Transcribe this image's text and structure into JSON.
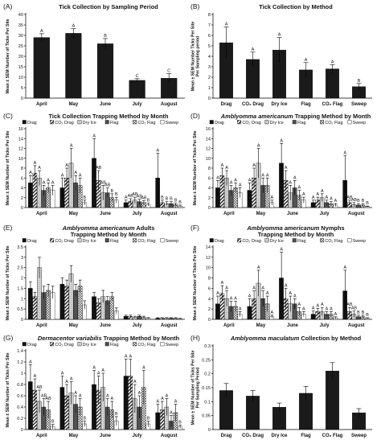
{
  "figure": {
    "patterns": {
      "Drag": "solid-black",
      "CO2 Drag": "diagonal-hatch",
      "Dry Ice": "light-grey-dotted",
      "Flag": "dense-dark-dots",
      "CO2 Flag": "checker",
      "Sweep": "white"
    },
    "colors": {
      "bar": "#1a1a1a",
      "axis": "#000000",
      "background": "#ffffff"
    }
  },
  "chart_data": [
    {
      "id": "A",
      "panel_label": "(A)",
      "type": "bar",
      "title": "Tick Collection by Sampling Period",
      "title_style": "plain",
      "ylabel": [
        "Mean ± SEM Number of Ticks Per Site"
      ],
      "ylim": [
        0,
        40
      ],
      "yticks": [
        0,
        5,
        10,
        15,
        20,
        25,
        30,
        35,
        40
      ],
      "categories": [
        "April",
        "May",
        "June",
        "July",
        "August"
      ],
      "series": [
        {
          "values": [
            29,
            31,
            26,
            8.5,
            9.5
          ],
          "errors": [
            1.8,
            2.2,
            2.5,
            0.8,
            2.2
          ],
          "letters": [
            "A",
            "A",
            "B",
            "C",
            "C"
          ]
        }
      ]
    },
    {
      "id": "B",
      "panel_label": "(B)",
      "type": "bar",
      "title": "Tick Collection by Method",
      "title_style": "plain",
      "ylabel": [
        "Mean ± SEM Number Ticks Per Site",
        "Per Sampling period"
      ],
      "ylim": [
        0,
        8
      ],
      "yticks": [
        0,
        1,
        2,
        3,
        4,
        5,
        6,
        7,
        8
      ],
      "categories": [
        "Drag",
        "CO₂ Drag",
        "Dry Ice",
        "Flag",
        "CO₂ Flag",
        "Sweep"
      ],
      "series": [
        {
          "values": [
            5.3,
            3.7,
            4.6,
            2.7,
            2.8,
            1.1
          ],
          "errors": [
            1.5,
            0.7,
            1.2,
            0.7,
            0.4,
            0.3
          ],
          "letters": [
            "A",
            "A",
            "A",
            "A",
            "A",
            "B"
          ]
        }
      ]
    },
    {
      "id": "C",
      "panel_label": "(C)",
      "type": "bar",
      "title": "Tick Collection Trapping Method by Month",
      "title_style": "plain",
      "ylabel": [
        "Mean ± SEM Number of Ticks Per Site"
      ],
      "ylim": [
        0,
        16
      ],
      "yticks": [
        0,
        2,
        4,
        6,
        8,
        10,
        12,
        14,
        16
      ],
      "categories": [
        "April",
        "May",
        "June",
        "July",
        "August"
      ],
      "legend": [
        "Drag",
        "CO₂ Drag",
        "Dry Ice",
        "Flag",
        "CO₂ Flag",
        "Sweep"
      ],
      "series": [
        {
          "name": "Drag",
          "values": [
            5,
            4,
            10,
            1,
            6
          ],
          "errors": [
            1.5,
            2,
            4,
            0.5,
            5
          ],
          "letters": [
            "A",
            "A",
            "A",
            "A",
            "A"
          ]
        },
        {
          "name": "CO₂ Drag",
          "values": [
            7,
            6,
            5.5,
            1.3,
            1
          ],
          "errors": [
            1.5,
            2,
            2,
            0.5,
            0.5
          ],
          "letters": [
            "A",
            "A",
            "AB",
            "AB",
            "B"
          ]
        },
        {
          "name": "Dry Ice",
          "values": [
            6,
            9,
            3,
            1.5,
            0.8
          ],
          "errors": [
            1.5,
            3,
            1.5,
            0.6,
            0.4
          ],
          "letters": [
            "A",
            "A",
            "AB",
            "AB",
            "B"
          ]
        },
        {
          "name": "Flag",
          "values": [
            3.5,
            5,
            3,
            1.2,
            0.8
          ],
          "errors": [
            1,
            1.5,
            1,
            0.5,
            0.4
          ],
          "letters": [
            "A",
            "A",
            "AB",
            "AB",
            "B"
          ]
        },
        {
          "name": "CO₂ Flag",
          "values": [
            4,
            4.5,
            2,
            1,
            0.6
          ],
          "errors": [
            1,
            1.5,
            0.8,
            0.4,
            0.3
          ],
          "letters": [
            "A",
            "A",
            "B",
            "AB",
            "B"
          ]
        },
        {
          "name": "Sweep",
          "values": [
            3.5,
            1,
            1.5,
            0.6,
            0.3
          ],
          "errors": [
            1,
            0.5,
            0.6,
            0.3,
            0.2
          ],
          "letters": [
            "A",
            "B",
            "B",
            "B",
            "B"
          ]
        }
      ]
    },
    {
      "id": "D",
      "panel_label": "(D)",
      "type": "bar",
      "title": "Amblyomma americanum Trapping Method by Month",
      "title_style": "mixed",
      "title_italic": "Amblyomma americanum",
      "title_rest": " Trapping Method by Month",
      "ylabel": [
        "Mean ± SEM Number of Ticks Per Site"
      ],
      "ylim": [
        0,
        16
      ],
      "yticks": [
        0,
        2,
        4,
        6,
        8,
        10,
        12,
        14,
        16
      ],
      "categories": [
        "April",
        "May",
        "June",
        "July",
        "August"
      ],
      "legend": [
        "Drag",
        "CO₂ Drag",
        "Dry Ice",
        "Flag",
        "CO₂ Flag",
        "Sweep"
      ],
      "series": [
        {
          "name": "Drag",
          "values": [
            4,
            3.5,
            9,
            1,
            5.5
          ],
          "errors": [
            1.5,
            1.5,
            4,
            0.5,
            5
          ],
          "letters": [
            "A",
            "A",
            "A",
            "A",
            "A"
          ]
        },
        {
          "name": "CO₂ Drag",
          "values": [
            6.5,
            6,
            5.5,
            1.5,
            1
          ],
          "errors": [
            1.5,
            2,
            2,
            0.6,
            0.5
          ],
          "letters": [
            "A",
            "A",
            "A",
            "A",
            "AB"
          ]
        },
        {
          "name": "Dry Ice",
          "values": [
            6,
            9,
            3,
            2,
            0.6
          ],
          "errors": [
            1.5,
            3,
            1.5,
            0.8,
            0.4
          ],
          "letters": [
            "A",
            "A",
            "A",
            "A",
            "AB"
          ]
        },
        {
          "name": "Flag",
          "values": [
            3.5,
            4.5,
            4,
            1,
            0.5
          ],
          "errors": [
            1,
            1.5,
            1.5,
            0.5,
            0.3
          ],
          "letters": [
            "A",
            "A",
            "A",
            "A",
            "B"
          ]
        },
        {
          "name": "CO₂ Flag",
          "values": [
            4,
            4.5,
            2.5,
            0.8,
            0.5
          ],
          "errors": [
            1,
            1.5,
            1,
            0.4,
            0.3
          ],
          "letters": [
            "A",
            "A",
            "A",
            "A",
            "B"
          ]
        },
        {
          "name": "Sweep",
          "values": [
            3,
            1,
            1.5,
            0.5,
            0.2
          ],
          "errors": [
            1,
            0.5,
            0.6,
            0.3,
            0.1
          ],
          "letters": [
            "A",
            "A",
            "A",
            "A",
            "B"
          ]
        }
      ]
    },
    {
      "id": "E",
      "panel_label": "(E)",
      "type": "bar",
      "title": "Amblyomma americanum Adults Trapping Method by Month",
      "title_style": "two-line",
      "title_italic": "Amblyomma americanum",
      "title_rest": " Adults",
      "title_line2": "Trapping Method by Month",
      "ylabel": [
        "Mean ± SEM Number of Ticks Per Site"
      ],
      "ylim": [
        0,
        3.5
      ],
      "yticks": [
        0,
        0.5,
        1,
        1.5,
        2,
        2.5,
        3,
        3.5
      ],
      "categories": [
        "April",
        "May",
        "June",
        "July",
        "August"
      ],
      "legend": [
        "Drag",
        "CO₂ Drag",
        "Dry Ice",
        "Flag",
        "CO₂ Flag",
        "Sweep"
      ],
      "series": [
        {
          "name": "Drag",
          "values": [
            1.5,
            1.7,
            1.1,
            0.15,
            0.05
          ],
          "errors": [
            0.3,
            0.3,
            0.2,
            0.05,
            0.03
          ]
        },
        {
          "name": "CO₂ Drag",
          "values": [
            1.1,
            1.6,
            0.8,
            0.15,
            0.05
          ],
          "errors": [
            0.2,
            0.3,
            0.2,
            0.05,
            0.03
          ]
        },
        {
          "name": "Dry Ice",
          "values": [
            2.5,
            2.2,
            1.1,
            0.1,
            0.05
          ],
          "errors": [
            0.5,
            0.4,
            0.3,
            0.05,
            0.03
          ]
        },
        {
          "name": "Flag",
          "values": [
            1.3,
            1.4,
            0.9,
            0.15,
            0.05
          ],
          "errors": [
            0.3,
            0.3,
            0.2,
            0.05,
            0.03
          ]
        },
        {
          "name": "CO₂ Flag",
          "values": [
            1.4,
            1.6,
            1.1,
            0.1,
            0.05
          ],
          "errors": [
            0.3,
            0.3,
            0.2,
            0.05,
            0.03
          ]
        },
        {
          "name": "Sweep",
          "values": [
            1.3,
            0.7,
            0.4,
            0.05,
            0.03
          ],
          "errors": [
            0.3,
            0.2,
            0.15,
            0.03,
            0.02
          ]
        }
      ]
    },
    {
      "id": "F",
      "panel_label": "(F)",
      "type": "bar",
      "title": "Amblyomma americanum Nymphs Trapping Method by Month",
      "title_style": "two-line",
      "title_italic": "Amblyomma americanum",
      "title_rest": " Nymphs",
      "title_line2": "Trapping Method by Month",
      "ylabel": [
        "Mean ± SEM Number of Ticks Per Site"
      ],
      "ylim": [
        0,
        14
      ],
      "yticks": [
        0,
        2,
        4,
        6,
        8,
        10,
        12,
        14
      ],
      "categories": [
        "April",
        "May",
        "June",
        "July",
        "August"
      ],
      "legend": [
        "Drag",
        "CO₂ Drag",
        "Dry Ice",
        "Flag",
        "CO₂ Flag",
        "Sweep"
      ],
      "series": [
        {
          "name": "Drag",
          "values": [
            3,
            2.5,
            8,
            1,
            5.5
          ],
          "errors": [
            1.5,
            1.5,
            5,
            0.6,
            4
          ],
          "letters": [
            "A",
            "A",
            "A",
            "A",
            "A"
          ]
        },
        {
          "name": "CO₂ Drag",
          "values": [
            5,
            4,
            4,
            1.5,
            1.5
          ],
          "errors": [
            1.5,
            1.5,
            2,
            0.6,
            0.8
          ],
          "letters": [
            "A",
            "A",
            "A",
            "A",
            "AB"
          ]
        },
        {
          "name": "Dry Ice",
          "values": [
            4,
            7,
            3,
            1.5,
            1
          ],
          "errors": [
            1.5,
            2.5,
            1.5,
            0.8,
            0.6
          ],
          "letters": [
            "A",
            "A",
            "A",
            "A",
            "AB"
          ]
        },
        {
          "name": "Flag",
          "values": [
            2.5,
            4,
            3,
            1,
            0.5
          ],
          "errors": [
            1,
            1.5,
            1,
            0.5,
            0.3
          ],
          "letters": [
            "A",
            "A",
            "A",
            "A",
            "B"
          ]
        },
        {
          "name": "CO₂ Flag",
          "values": [
            2.5,
            3,
            1.5,
            1,
            0.5
          ],
          "errors": [
            1,
            1.5,
            0.8,
            0.5,
            0.3
          ],
          "letters": [
            "A",
            "A",
            "A",
            "A",
            "B"
          ]
        },
        {
          "name": "Sweep",
          "values": [
            1,
            0.5,
            1,
            0.3,
            0.2
          ],
          "errors": [
            0.5,
            0.3,
            0.5,
            0.2,
            0.1
          ],
          "letters": [
            "A",
            "A",
            "A",
            "A",
            "B"
          ]
        }
      ]
    },
    {
      "id": "G",
      "panel_label": "(G)",
      "type": "bar",
      "title": "Dermacentor variabilis Trapping Method by Month",
      "title_style": "mixed",
      "title_italic": "Dermacentor variabilis",
      "title_rest": " Trapping Method by Month",
      "ylabel": [
        "Mean ± SEM Number of Ticks Per Site"
      ],
      "ylim": [
        0,
        1.4
      ],
      "yticks": [
        0,
        0.2,
        0.4,
        0.6,
        0.8,
        1,
        1.2,
        1.4
      ],
      "categories": [
        "April",
        "May",
        "June",
        "July",
        "August"
      ],
      "legend": [
        "Drag",
        "CO₂ Drag",
        "Dry Ice",
        "Flag",
        "CO₂ Flag",
        "Sweep"
      ],
      "series": [
        {
          "name": "Drag",
          "values": [
            0.85,
            0.75,
            0.8,
            0.95,
            0.3
          ],
          "errors": [
            0.3,
            0.2,
            0.25,
            0.3,
            0.15
          ],
          "letters": [
            "A",
            "A",
            "A",
            "A",
            "A"
          ]
        },
        {
          "name": "CO₂ Drag",
          "values": [
            0.7,
            0.6,
            0.7,
            0.95,
            0.35
          ],
          "errors": [
            0.2,
            0.2,
            0.25,
            0.3,
            0.15
          ],
          "letters": [
            "A",
            "A",
            "A",
            "A",
            "A"
          ]
        },
        {
          "name": "Dry Ice",
          "values": [
            0.5,
            0.65,
            0.75,
            0.55,
            0.4
          ],
          "errors": [
            0.2,
            0.2,
            0.25,
            0.25,
            0.15
          ],
          "letters": [
            "AB",
            "A",
            "A",
            "A",
            "A"
          ]
        },
        {
          "name": "Flag",
          "values": [
            0.4,
            0.45,
            0.4,
            0.4,
            0.15
          ],
          "errors": [
            0.15,
            0.15,
            0.15,
            0.2,
            0.1
          ],
          "letters": [
            "AB",
            "A",
            "A",
            "A",
            "A"
          ]
        },
        {
          "name": "CO₂ Flag",
          "values": [
            0.35,
            0.4,
            0.35,
            0.75,
            0.3
          ],
          "errors": [
            0.15,
            0.15,
            0.15,
            0.3,
            0.15
          ],
          "letters": [
            "AB",
            "A",
            "A",
            "A",
            "A"
          ]
        },
        {
          "name": "Sweep",
          "values": [
            0.05,
            0.1,
            0.15,
            0.1,
            0.05
          ],
          "errors": [
            0.04,
            0.05,
            0.08,
            0.05,
            0.03
          ],
          "letters": [
            "B",
            "B",
            "B",
            "B",
            "B"
          ]
        }
      ]
    },
    {
      "id": "H",
      "panel_label": "(H)",
      "type": "bar",
      "title": "Amblyomma maculatum Collection by Method",
      "title_style": "mixed",
      "title_italic": "Amblyomma maculatum",
      "title_rest": " Collection by Method",
      "ylabel": [
        "Mean ± SEM Number of Ticks Per Site",
        "Per Sampling Period"
      ],
      "ylim": [
        0,
        0.3
      ],
      "yticks": [
        0,
        0.05,
        0.1,
        0.15,
        0.2,
        0.25,
        0.3
      ],
      "categories": [
        "Drag",
        "CO₂ Drag",
        "Dry Ice",
        "Flag",
        "CO₂ Flag",
        "Sweep"
      ],
      "series": [
        {
          "values": [
            0.14,
            0.12,
            0.08,
            0.13,
            0.21,
            0.06
          ],
          "errors": [
            0.025,
            0.02,
            0.015,
            0.025,
            0.03,
            0.015
          ]
        }
      ]
    }
  ]
}
